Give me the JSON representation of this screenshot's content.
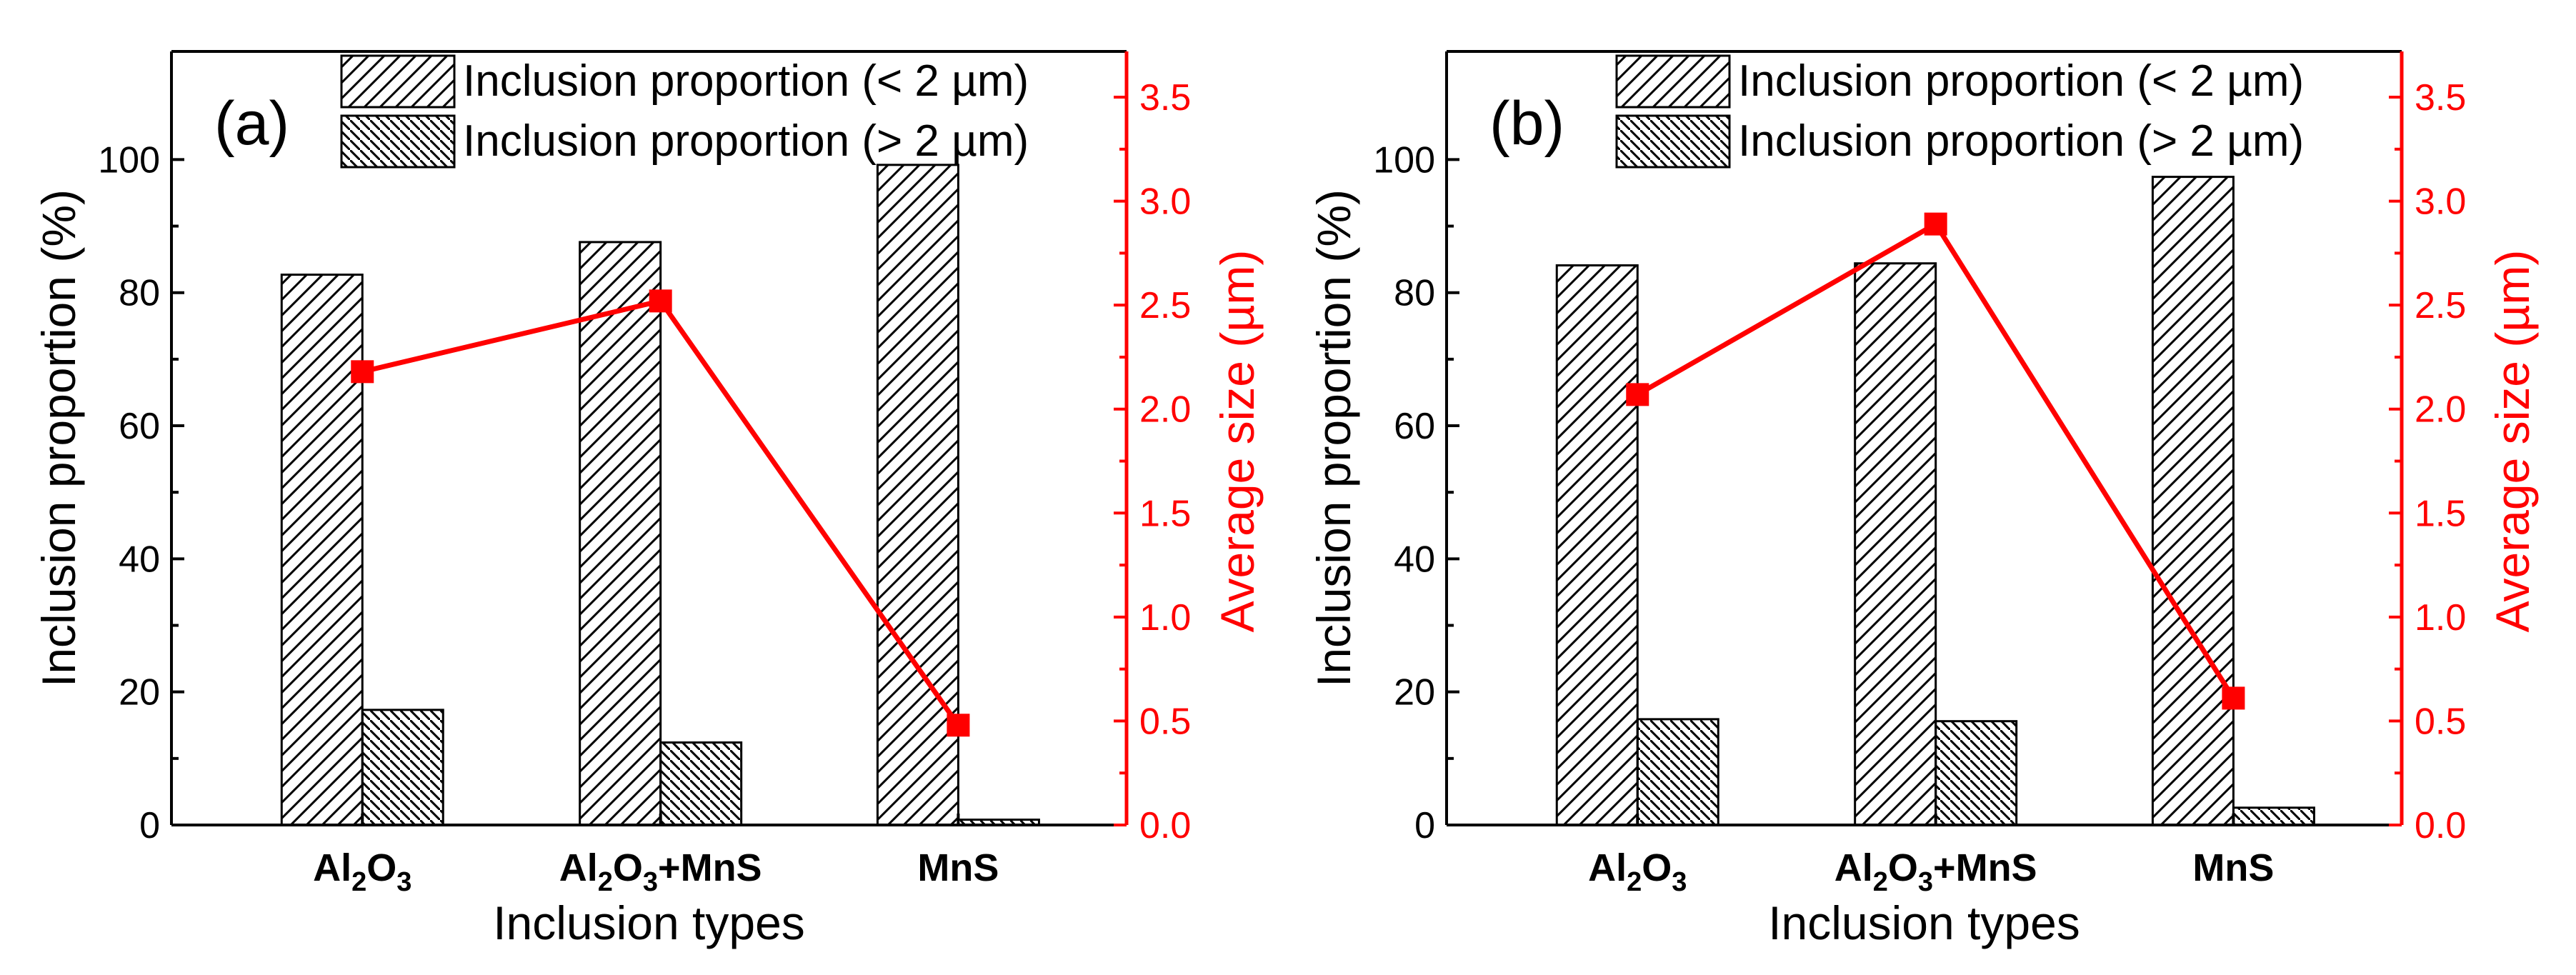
{
  "chart_data": [
    {
      "type": "bar",
      "panel_label": "(a)",
      "categories": [
        {
          "main": "Al",
          "sub1": "2",
          "mid": "O",
          "sub2": "3",
          "rest": ""
        },
        {
          "main": "Al",
          "sub1": "2",
          "mid": "O",
          "sub2": "3",
          "rest": "+MnS"
        },
        {
          "main": "MnS",
          "sub1": "",
          "mid": "",
          "sub2": "",
          "rest": ""
        }
      ],
      "series": [
        {
          "name": "Inclusion proportion (< 2 µm)",
          "values": [
            82.7,
            87.6,
            99.2
          ],
          "hatch": "forward"
        },
        {
          "name": "Inclusion proportion (> 2 µm)",
          "values": [
            17.3,
            12.4,
            0.8
          ],
          "hatch": "back"
        },
        {
          "name": "Average size",
          "values": [
            2.18,
            2.52,
            0.48
          ],
          "axis": "right",
          "color": "#ff0000"
        }
      ],
      "xlabel": "Inclusion types",
      "ylabel": "Inclusion proportion (%)",
      "ylabel_right": "Average size (µm)",
      "ylim": [
        0,
        116.25
      ],
      "ylim_right": [
        0,
        3.72
      ],
      "yticks": [
        "0",
        "20",
        "40",
        "60",
        "80",
        "100"
      ],
      "yticks_right": [
        "0.0",
        "0.5",
        "1.0",
        "1.5",
        "2.0",
        "2.5",
        "3.0",
        "3.5"
      ],
      "legend_position": "top-right"
    },
    {
      "type": "bar",
      "panel_label": "(b)",
      "categories": [
        {
          "main": "Al",
          "sub1": "2",
          "mid": "O",
          "sub2": "3",
          "rest": ""
        },
        {
          "main": "Al",
          "sub1": "2",
          "mid": "O",
          "sub2": "3",
          "rest": "+MnS"
        },
        {
          "main": "MnS",
          "sub1": "",
          "mid": "",
          "sub2": "",
          "rest": ""
        }
      ],
      "series": [
        {
          "name": "Inclusion proportion (< 2 µm)",
          "values": [
            84.1,
            84.4,
            97.4
          ],
          "hatch": "forward"
        },
        {
          "name": "Inclusion proportion (> 2 µm)",
          "values": [
            15.9,
            15.6,
            2.6
          ],
          "hatch": "back"
        },
        {
          "name": "Average size",
          "values": [
            2.07,
            2.89,
            0.61
          ],
          "axis": "right",
          "color": "#ff0000"
        }
      ],
      "xlabel": "Inclusion types",
      "ylabel": "Inclusion proportion (%)",
      "ylabel_right": "Average size (µm)",
      "ylim": [
        0,
        116.25
      ],
      "ylim_right": [
        0,
        3.72
      ],
      "yticks": [
        "0",
        "20",
        "40",
        "60",
        "80",
        "100"
      ],
      "yticks_right": [
        "0.0",
        "0.5",
        "1.0",
        "1.5",
        "2.0",
        "2.5",
        "3.0",
        "3.5"
      ],
      "legend_position": "top-right"
    }
  ],
  "colors": {
    "axis_left": "#000000",
    "axis_right": "#ff0000",
    "bar_fill": "#ffffff",
    "line": "#ff0000"
  }
}
